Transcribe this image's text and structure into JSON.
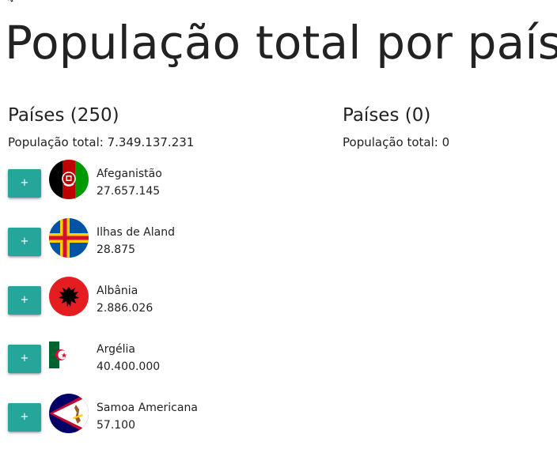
{
  "title": "População total por país",
  "left": {
    "heading": "Países (250)",
    "total": "População total: 7.349.137.231"
  },
  "right": {
    "heading": "Países (0)",
    "total": "População total: 0"
  },
  "add_label": "+",
  "countries": [
    {
      "name": "Afeganistão",
      "population": "27.657.145",
      "flag_icon": "afghanistan-flag-icon"
    },
    {
      "name": "Ilhas de Aland",
      "population": "28.875",
      "flag_icon": "aland-islands-flag-icon"
    },
    {
      "name": "Albânia",
      "population": "2.886.026",
      "flag_icon": "albania-flag-icon"
    },
    {
      "name": "Argélia",
      "population": "40.400.000",
      "flag_icon": "algeria-flag-icon"
    },
    {
      "name": "Samoa Americana",
      "population": "57.100",
      "flag_icon": "american-samoa-flag-icon"
    }
  ],
  "colors": {
    "button": "#26a69a",
    "button_text": "#ffffff",
    "text": "#212121"
  }
}
